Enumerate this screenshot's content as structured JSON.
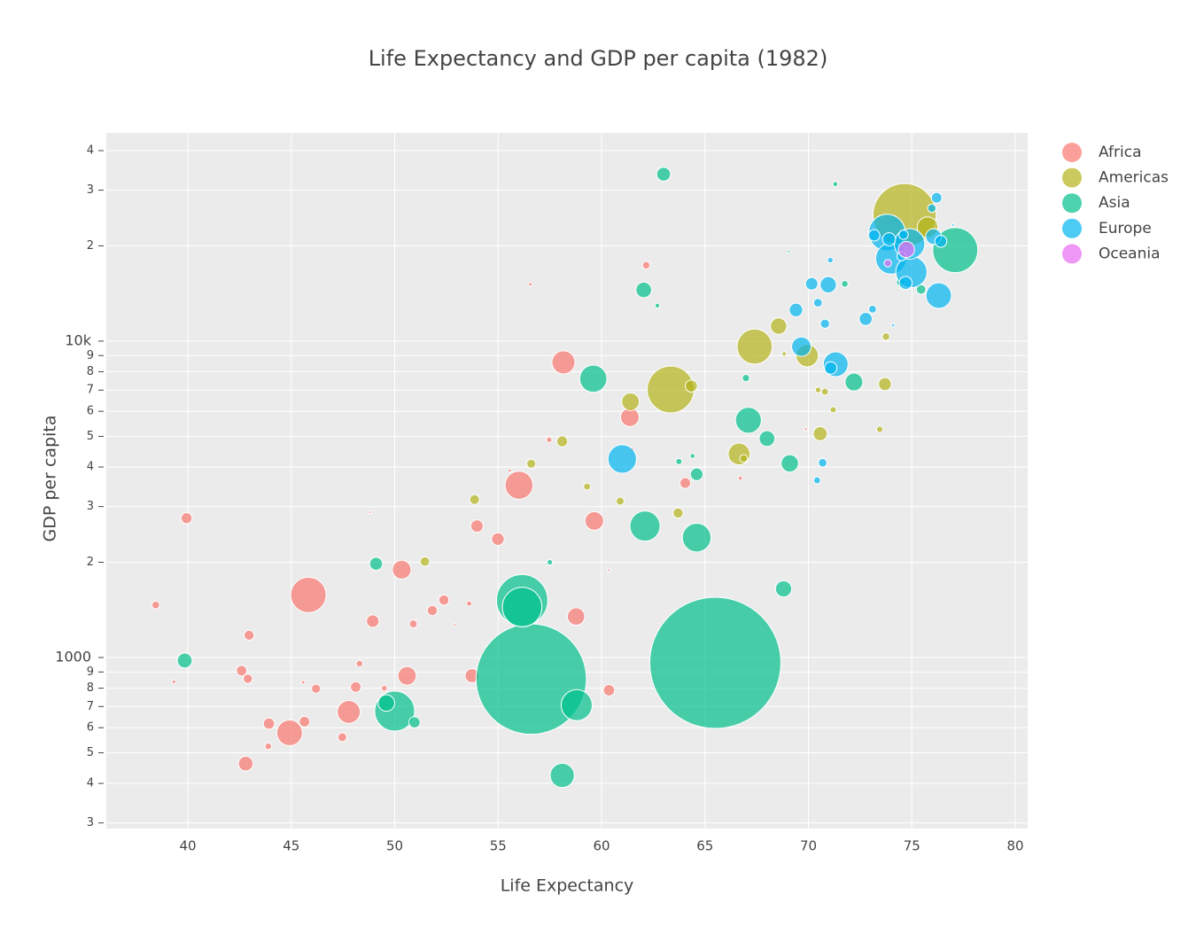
{
  "chart_data": {
    "type": "scatter",
    "title": "Life Expectancy and GDP per capita (1982)",
    "x_label": "Life Expectancy",
    "y_label": "GDP per capita",
    "y_log": true,
    "grid": true,
    "xlim": [
      36.06,
      80.6
    ],
    "xticks": [
      40,
      45,
      50,
      55,
      60,
      65,
      70,
      75,
      80
    ],
    "ylim": [
      288,
      45500
    ],
    "yticks": [
      {
        "value": 300,
        "label": "3"
      },
      {
        "value": 400,
        "label": "4"
      },
      {
        "value": 500,
        "label": "5"
      },
      {
        "value": 600,
        "label": "6"
      },
      {
        "value": 700,
        "label": "7"
      },
      {
        "value": 800,
        "label": "8"
      },
      {
        "value": 900,
        "label": "9"
      },
      1000,
      {
        "value": 2000,
        "label": "2"
      },
      {
        "value": 3000,
        "label": "3"
      },
      {
        "value": 4000,
        "label": "4"
      },
      {
        "value": 5000,
        "label": "5"
      },
      {
        "value": 6000,
        "label": "6"
      },
      {
        "value": 7000,
        "label": "7"
      },
      {
        "value": 8000,
        "label": "8"
      },
      {
        "value": 9000,
        "label": "9"
      },
      {
        "value": 10000,
        "label": "10k"
      },
      {
        "value": 20000,
        "label": "2"
      },
      {
        "value": 30000,
        "label": "3"
      },
      {
        "value": 40000,
        "label": "4"
      }
    ],
    "series": [
      {
        "name": "Africa",
        "color": "#F8766D",
        "x": [
          62.16,
          56.56,
          58.16,
          61.37,
          69.88,
          57.47,
          61.48,
          66.71,
          64.05,
          56.01,
          55.56,
          59.65,
          39.94,
          48.81,
          53.98,
          54.99,
          60.35,
          50.34,
          45.83,
          52.38,
          53.6,
          38.45,
          51.82,
          58.77,
          48.94,
          50.9,
          52.9,
          42.96,
          48.3,
          42.6,
          42.9,
          50.6,
          53.74,
          46.2,
          39.33,
          48.12,
          60.36,
          45.58,
          47.78,
          49.5,
          45.64,
          43.92,
          44.92,
          47.47,
          43.89,
          42.8
        ],
        "values": [
          17364,
          15113,
          8568,
          5745,
          5267,
          4879,
          4551,
          3688,
          3560,
          3504,
          3896,
          2702,
          2757,
          2880,
          2603,
          2368,
          1890,
          1895,
          1577,
          1519,
          1481,
          1465,
          1408,
          1348,
          1303,
          1277,
          1268,
          1176,
          956,
          909,
          857,
          875,
          876,
          797,
          838,
          807,
          788,
          835,
          673,
          800,
          627,
          618,
          578,
          560,
          524,
          462
        ],
        "sizes": [
          3.3,
          0.75,
          31.1,
          20.0,
          0.52,
          1.77,
          0.97,
          0.99,
          6.73,
          45.7,
          0.65,
          20.2,
          7.0,
          0.31,
          9.0,
          9.25,
          0.1,
          20.4,
          73.0,
          6.1,
          1.6,
          3.46,
          6.1,
          17.7,
          9.2,
          3.6,
          0.4,
          5.8,
          2.5,
          6.4,
          5.0,
          19.8,
          11.4,
          4.9,
          0.8,
          6.6,
          7.6,
          0.7,
          30.6,
          2.0,
          6.5,
          7.3,
          38.1,
          4.6,
          2.6,
          12.6
        ]
      },
      {
        "name": "Americas",
        "color": "#B3B31B",
        "x": [
          74.65,
          75.76,
          63.34,
          67.4,
          69.94,
          68.56,
          66.65,
          61.4,
          70.57,
          64.34,
          73.7,
          70.8,
          70.47,
          73.45,
          68.83,
          73.75,
          71.2,
          63.7,
          58.1,
          56.6,
          60.9,
          59.3,
          53.86,
          66.87,
          51.46
        ],
        "values": [
          25010,
          22899,
          7031,
          9611,
          8998,
          11152,
          4398,
          6435,
          5096,
          7213,
          7316,
          6920,
          7010,
          5262,
          9119,
          10331,
          6068,
          2862,
          4820,
          4098,
          3121,
          3470,
          3157,
          4258,
          2011
        ],
        "sizes": [
          232,
          25,
          128,
          71.6,
          29.3,
          15.6,
          27.8,
          18.1,
          11.5,
          8.4,
          9.8,
          2.9,
          2.0,
          2.4,
          1.1,
          3.3,
          2.3,
          6.0,
          7.0,
          4.7,
          3.7,
          2.9,
          5.6,
          3.4,
          5.2
        ]
      },
      {
        "name": "Asia",
        "color": "#00C08B",
        "x": [
          65.5,
          56.6,
          56.16,
          56.16,
          50.0,
          77.1,
          58.8,
          62.1,
          64.6,
          59.6,
          67.1,
          58.1,
          39.85,
          49.6,
          69.1,
          68.0,
          68.8,
          62.04,
          63.0,
          64.6,
          72.2,
          49.1,
          50.96,
          75.45,
          74.45,
          66.98,
          71.3,
          71.76,
          62.7,
          69.05,
          57.5,
          64.4,
          63.74
        ],
        "values": [
          962,
          855,
          1517,
          1443,
          677,
          19384,
          707,
          2603,
          2393,
          7608,
          5623,
          424,
          978,
          718,
          4107,
          4920,
          1648,
          14517,
          33693,
          3795,
          7426,
          1978,
          624,
          14560,
          15367,
          7640,
          31354,
          15170,
          12955,
          19211,
          2000,
          4336,
          4162
        ],
        "sizes": [
          1000,
          708,
          153,
          91,
          93,
          118,
          56,
          53,
          48,
          43,
          39,
          34,
          12.9,
          15.8,
          17.6,
          14.4,
          15.4,
          14.2,
          11.3,
          9.4,
          18.5,
          9.7,
          7.3,
          5.3,
          3.9,
          3.1,
          1.5,
          2.6,
          1.3,
          0.38,
          1.8,
          1.4,
          2.3
        ]
      },
      {
        "name": "Europe",
        "color": "#00B5F0",
        "x": [
          73.8,
          74.0,
          74.98,
          74.89,
          76.3,
          71.32,
          69.66,
          61.0,
          76.05,
          76.2,
          75.97,
          76.4,
          73.9,
          73.18,
          74.6,
          74.5,
          74.7,
          72.77,
          69.4,
          70.96,
          71.08,
          73.1,
          70.8,
          70.46,
          70.16,
          70.69,
          70.42,
          74.1,
          76.99,
          71.06
        ],
        "values": [
          22032,
          18232,
          16537,
          20294,
          13926,
          8452,
          9605,
          4241,
          21400,
          28397,
          26298,
          20667,
          20979,
          21597,
          21688,
          18533,
          15268,
          11753,
          12546,
          15071,
          8224,
          12618,
          11348,
          13222,
          15181,
          4126,
          3631,
          11222,
          23270,
          18033
        ],
        "sizes": [
          78,
          56,
          56.7,
          54,
          37.9,
          36,
          22,
          47.3,
          14.3,
          6.5,
          4.1,
          8.3,
          9.9,
          7.6,
          5.1,
          4.8,
          9.8,
          9.9,
          10.7,
          15.3,
          8.9,
          3.5,
          5.0,
          4.4,
          9.0,
          4.2,
          2.8,
          0.56,
          0.23,
          1.86
        ]
      },
      {
        "name": "Oceania",
        "color": "#E76BF3",
        "x": [
          74.74,
          73.84
        ],
        "values": [
          19477,
          17632
        ],
        "sizes": [
          15.2,
          3.2
        ]
      }
    ]
  }
}
